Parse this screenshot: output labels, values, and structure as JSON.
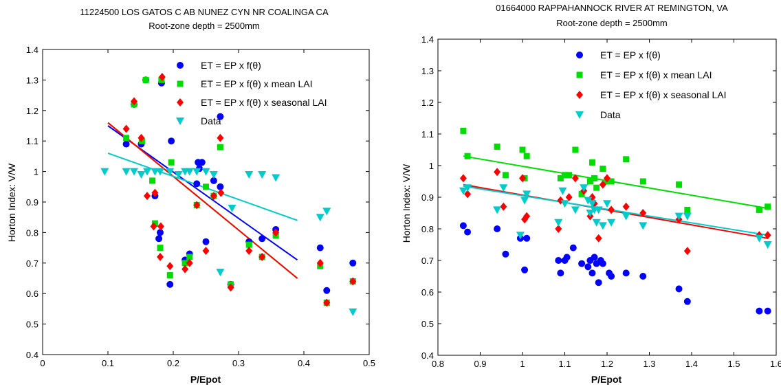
{
  "chart_data": [
    {
      "type": "scatter",
      "title": "11224500 LOS GATOS C AB NUNEZ CYN NR COALINGA CA",
      "subtitle": "Root-zone depth = 2500mm",
      "xlabel": "P/Epot",
      "ylabel": "Horton Index: V/W",
      "xlim": [
        0,
        0.5
      ],
      "ylim": [
        0.4,
        1.4
      ],
      "xticks": [
        0,
        0.1,
        0.2,
        0.3,
        0.4,
        0.5
      ],
      "xtick_labels": [
        "0",
        "0.1",
        "0.2",
        "0.3",
        "0.4",
        "0.5"
      ],
      "yticks": [
        0.4,
        0.5,
        0.6,
        0.7,
        0.8,
        0.9,
        1.0,
        1.1,
        1.2,
        1.3,
        1.4
      ],
      "ytick_labels": [
        "0.4",
        "0.5",
        "0.6",
        "0.7",
        "0.8",
        "0.9",
        "1",
        "1.1",
        "1.2",
        "1.3",
        "1.4"
      ],
      "grid": false,
      "legend_position": "top-right",
      "series": [
        {
          "name": "ET = EP x f(θ)",
          "color": "#0000ff",
          "marker": "circle",
          "x": [
            0.128,
            0.14,
            0.151,
            0.158,
            0.172,
            0.178,
            0.18,
            0.182,
            0.195,
            0.197,
            0.218,
            0.225,
            0.236,
            0.238,
            0.24,
            0.244,
            0.25,
            0.262,
            0.272,
            0.272,
            0.288,
            0.316,
            0.336,
            0.357,
            0.425,
            0.435,
            0.475
          ],
          "y": [
            1.09,
            1.22,
            1.09,
            1.3,
            0.92,
            0.78,
            0.8,
            1.29,
            0.63,
            1.1,
            0.71,
            0.73,
            0.96,
            1.03,
            1.01,
            1.03,
            0.77,
            0.97,
            0.95,
            1.18,
            0.63,
            0.77,
            0.78,
            0.81,
            0.75,
            0.61,
            0.7
          ],
          "fit": {
            "x": [
              0.1,
              0.39
            ],
            "y": [
              1.15,
              0.71
            ]
          }
        },
        {
          "name": "ET = EP x f(θ) x mean LAI",
          "color": "#00dd00",
          "marker": "square",
          "x": [
            0.128,
            0.14,
            0.152,
            0.158,
            0.168,
            0.172,
            0.18,
            0.182,
            0.195,
            0.197,
            0.218,
            0.225,
            0.236,
            0.25,
            0.262,
            0.272,
            0.288,
            0.316,
            0.336,
            0.357,
            0.425,
            0.435,
            0.475
          ],
          "y": [
            1.11,
            1.22,
            1.1,
            1.3,
            0.97,
            0.83,
            0.75,
            1.3,
            0.66,
            1.03,
            0.7,
            0.72,
            0.89,
            0.95,
            0.92,
            1.08,
            0.63,
            0.76,
            0.72,
            0.79,
            0.69,
            0.57,
            0.64
          ],
          "fit": {
            "x": [
              0.1,
              0.39
            ],
            "y": [
              1.16,
              0.65
            ]
          }
        },
        {
          "name": "ET = EP x f(θ) x seasonal LAI",
          "color": "#ff0000",
          "marker": "diamond",
          "x": [
            0.128,
            0.14,
            0.151,
            0.16,
            0.17,
            0.172,
            0.18,
            0.181,
            0.183,
            0.195,
            0.218,
            0.225,
            0.236,
            0.25,
            0.262,
            0.272,
            0.273,
            0.288,
            0.316,
            0.336,
            0.357,
            0.425,
            0.435,
            0.475
          ],
          "y": [
            1.14,
            1.23,
            1.11,
            0.92,
            0.82,
            0.93,
            0.72,
            0.82,
            1.31,
            0.69,
            0.68,
            0.7,
            0.89,
            0.74,
            0.92,
            1.11,
            0.93,
            0.62,
            0.74,
            0.72,
            0.8,
            0.7,
            0.57,
            0.64
          ],
          "fit": {
            "x": [
              0.1,
              0.39
            ],
            "y": [
              1.16,
              0.65
            ]
          }
        },
        {
          "name": "Data",
          "color": "#00cccc",
          "marker": "triangle-down",
          "x": [
            0.095,
            0.128,
            0.14,
            0.151,
            0.16,
            0.172,
            0.18,
            0.195,
            0.208,
            0.218,
            0.225,
            0.236,
            0.25,
            0.262,
            0.272,
            0.29,
            0.316,
            0.336,
            0.357,
            0.425,
            0.435,
            0.475
          ],
          "y": [
            1.0,
            1.0,
            1.0,
            0.99,
            1.0,
            1.0,
            1.0,
            1.0,
            0.99,
            1.0,
            1.0,
            1.0,
            1.0,
            0.99,
            0.67,
            0.88,
            0.99,
            0.99,
            0.98,
            0.85,
            0.87,
            0.54
          ],
          "fit": {
            "x": [
              0.1,
              0.39
            ],
            "y": [
              1.06,
              0.84
            ]
          }
        }
      ]
    },
    {
      "type": "scatter",
      "title": "01664000 RAPPAHANNOCK RIVER AT REMINGTON, VA",
      "subtitle": "Root-zone depth = 2500mm",
      "xlabel": "P/Epot",
      "ylabel": "Horton Index: V/W",
      "xlim": [
        0.8,
        1.6
      ],
      "ylim": [
        0.4,
        1.4
      ],
      "xticks": [
        0.8,
        0.9,
        1.0,
        1.1,
        1.2,
        1.3,
        1.4,
        1.5,
        1.6
      ],
      "xtick_labels": [
        "0.8",
        "0.9",
        "1",
        "1.1",
        "1.2",
        "1.3",
        "1.4",
        "1.5",
        "1.6"
      ],
      "yticks": [
        0.4,
        0.5,
        0.6,
        0.7,
        0.8,
        0.9,
        1.0,
        1.1,
        1.2,
        1.3,
        1.4
      ],
      "ytick_labels": [
        "0.4",
        "0.5",
        "0.6",
        "0.7",
        "0.8",
        "0.9",
        "1",
        "1.1",
        "1.2",
        "1.3",
        "1.4"
      ],
      "grid": false,
      "legend_position": "top-center",
      "series": [
        {
          "name": "ET = EP x f(θ)",
          "color": "#0000ff",
          "marker": "circle",
          "x": [
            0.86,
            0.87,
            0.94,
            0.96,
            0.995,
            1.005,
            1.01,
            1.085,
            1.09,
            1.1,
            1.105,
            1.12,
            1.14,
            1.155,
            1.16,
            1.165,
            1.17,
            1.175,
            1.18,
            1.185,
            1.19,
            1.205,
            1.21,
            1.245,
            1.285,
            1.37,
            1.39,
            1.56,
            1.58
          ],
          "y": [
            0.81,
            0.79,
            0.8,
            0.72,
            0.77,
            0.67,
            0.77,
            0.7,
            0.66,
            0.7,
            0.71,
            0.74,
            0.69,
            0.68,
            0.7,
            0.66,
            0.71,
            0.69,
            0.63,
            0.7,
            0.69,
            0.66,
            0.65,
            0.66,
            0.65,
            0.61,
            0.57,
            0.54,
            0.54
          ]
        },
        {
          "name": "ET = EP x f(θ) x mean LAI",
          "color": "#00dd00",
          "marker": "square",
          "x": [
            0.86,
            0.87,
            0.94,
            0.96,
            1.0,
            1.005,
            1.01,
            1.09,
            1.1,
            1.11,
            1.125,
            1.14,
            1.16,
            1.165,
            1.17,
            1.175,
            1.19,
            1.2,
            1.21,
            1.245,
            1.285,
            1.37,
            1.39,
            1.56,
            1.58
          ],
          "y": [
            1.11,
            1.03,
            1.06,
            0.97,
            1.05,
            0.96,
            1.03,
            0.96,
            0.97,
            0.97,
            1.05,
            0.91,
            0.95,
            1.01,
            0.96,
            0.93,
            0.99,
            0.95,
            0.95,
            1.02,
            0.95,
            0.94,
            0.86,
            0.86,
            0.87
          ],
          "fit": {
            "x": [
              0.86,
              1.58
            ],
            "y": [
              1.03,
              0.865
            ]
          }
        },
        {
          "name": "ET = EP x f(θ) x seasonal LAI",
          "color": "#ff0000",
          "marker": "diamond",
          "x": [
            0.86,
            0.87,
            0.94,
            0.955,
            1.0,
            1.005,
            1.01,
            1.085,
            1.09,
            1.11,
            1.125,
            1.145,
            1.16,
            1.165,
            1.17,
            1.18,
            1.19,
            1.2,
            1.21,
            1.245,
            1.285,
            1.37,
            1.39,
            1.56,
            1.58
          ],
          "y": [
            0.96,
            0.91,
            0.98,
            0.87,
            0.96,
            0.83,
            0.84,
            0.8,
            0.89,
            0.9,
            0.96,
            0.92,
            0.84,
            0.9,
            0.88,
            0.77,
            0.94,
            0.96,
            0.86,
            0.87,
            0.85,
            0.83,
            0.73,
            0.78,
            0.78
          ],
          "fit": {
            "x": [
              0.86,
              1.58
            ],
            "y": [
              0.94,
              0.77
            ]
          }
        },
        {
          "name": "Data",
          "color": "#00cccc",
          "marker": "triangle-down",
          "x": [
            0.86,
            0.87,
            0.94,
            0.955,
            0.995,
            1.005,
            1.01,
            1.085,
            1.095,
            1.1,
            1.125,
            1.145,
            1.155,
            1.16,
            1.165,
            1.17,
            1.175,
            1.18,
            1.19,
            1.2,
            1.21,
            1.245,
            1.285,
            1.37,
            1.39,
            1.56,
            1.58
          ],
          "y": [
            0.92,
            0.93,
            0.86,
            0.93,
            0.78,
            0.89,
            0.91,
            0.82,
            0.92,
            0.88,
            0.86,
            0.93,
            0.89,
            0.85,
            0.88,
            0.86,
            0.82,
            0.86,
            0.81,
            0.88,
            0.82,
            0.84,
            0.81,
            0.84,
            0.84,
            0.77,
            0.75
          ],
          "fit": {
            "x": [
              0.86,
              1.58
            ],
            "y": [
              0.935,
              0.78
            ]
          }
        }
      ]
    }
  ]
}
